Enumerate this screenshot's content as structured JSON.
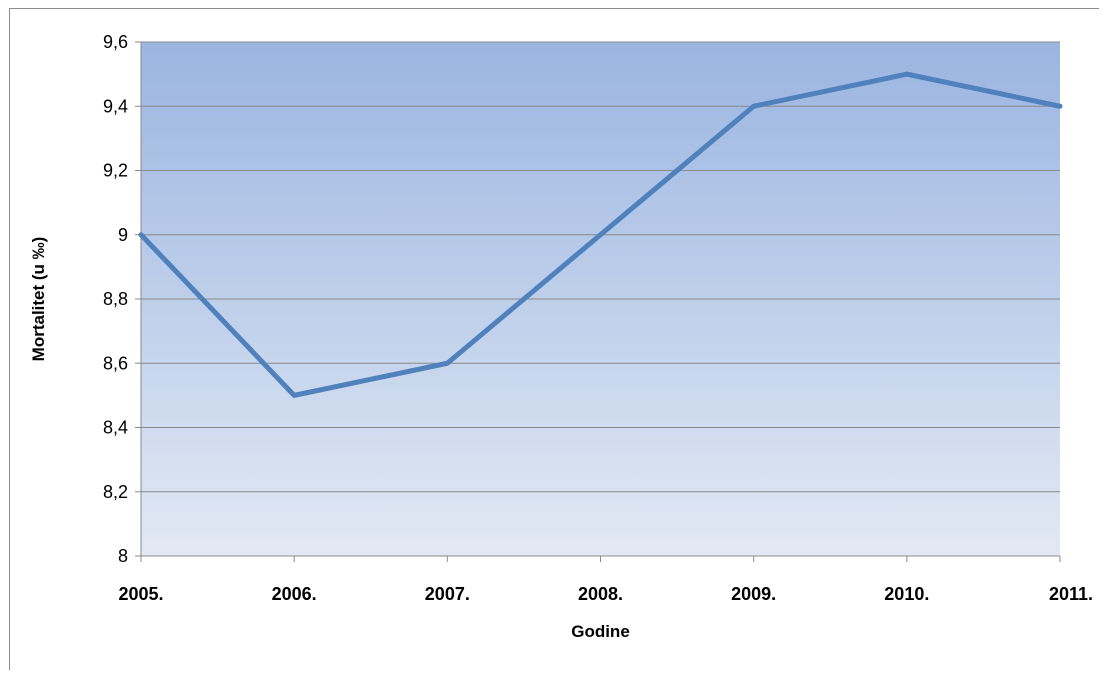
{
  "chart_data": {
    "type": "line",
    "title": "",
    "xlabel": "Godine",
    "ylabel": "Mortalitet (u ‰)",
    "categories": [
      "2005.",
      "2006.",
      "2007.",
      "2008.",
      "2009.",
      "2010.",
      "2011."
    ],
    "series": [
      {
        "values": [
          9.0,
          8.5,
          8.6,
          9.0,
          9.4,
          9.5,
          9.4
        ],
        "color": "#4f81bd"
      }
    ],
    "ylim": [
      8,
      9.6
    ],
    "yticks": [
      "8",
      "8,2",
      "8,4",
      "8,6",
      "8,8",
      "9",
      "9,2",
      "9,4",
      "9,6"
    ],
    "grid": true,
    "legend": "none",
    "plot_background": {
      "top_color": "#9bb5e1",
      "bottom_color": "#e2e9f4"
    }
  }
}
